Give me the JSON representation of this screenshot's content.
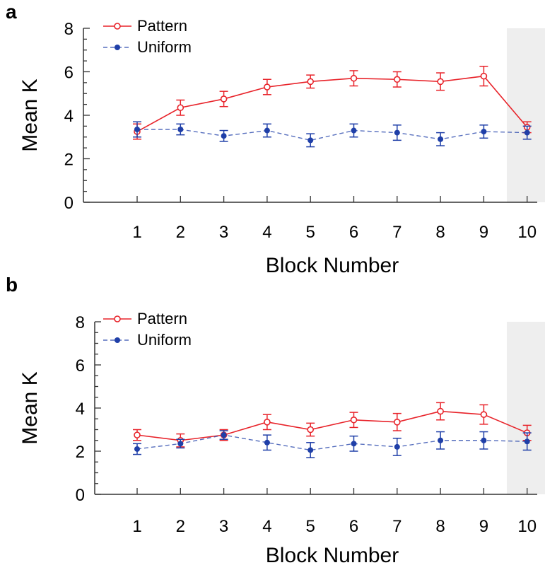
{
  "chart_data": [
    {
      "type": "line",
      "panel_label": "a",
      "xlabel": "Block Number",
      "ylabel": "Mean K",
      "x": [
        1,
        2,
        3,
        4,
        5,
        6,
        7,
        8,
        9,
        10
      ],
      "ylim": [
        0,
        8
      ],
      "yticks": [
        0,
        2,
        4,
        6,
        8
      ],
      "shaded_block": 10,
      "shade_color": "#eeeeee",
      "legend_position": "top-left",
      "series": [
        {
          "name": "Pattern",
          "color": "#e8232a",
          "marker": "open-circle",
          "line": "solid",
          "values": [
            3.25,
            4.35,
            4.75,
            5.3,
            5.55,
            5.7,
            5.65,
            5.55,
            5.8,
            3.45
          ],
          "errors": [
            0.35,
            0.35,
            0.35,
            0.35,
            0.3,
            0.35,
            0.35,
            0.4,
            0.45,
            0.25
          ]
        },
        {
          "name": "Uniform",
          "color": "#1f3fa8",
          "marker": "filled-circle",
          "line": "dashed",
          "values": [
            3.35,
            3.35,
            3.05,
            3.3,
            2.85,
            3.3,
            3.2,
            2.9,
            3.25,
            3.2
          ],
          "errors": [
            0.35,
            0.25,
            0.25,
            0.3,
            0.3,
            0.3,
            0.35,
            0.3,
            0.3,
            0.3
          ]
        }
      ]
    },
    {
      "type": "line",
      "panel_label": "b",
      "xlabel": "Block Number",
      "ylabel": "Mean K",
      "x": [
        1,
        2,
        3,
        4,
        5,
        6,
        7,
        8,
        9,
        10
      ],
      "ylim": [
        0,
        8
      ],
      "yticks": [
        0,
        2,
        4,
        6,
        8
      ],
      "shaded_block": 10,
      "shade_color": "#eeeeee",
      "legend_position": "top-left",
      "series": [
        {
          "name": "Pattern",
          "color": "#e8232a",
          "marker": "open-circle",
          "line": "solid",
          "values": [
            2.75,
            2.5,
            2.75,
            3.35,
            3.0,
            3.45,
            3.35,
            3.85,
            3.7,
            2.85
          ],
          "errors": [
            0.25,
            0.3,
            0.25,
            0.35,
            0.3,
            0.35,
            0.4,
            0.4,
            0.45,
            0.35
          ]
        },
        {
          "name": "Uniform",
          "color": "#1f3fa8",
          "marker": "filled-circle",
          "line": "dashed",
          "values": [
            2.1,
            2.35,
            2.75,
            2.4,
            2.05,
            2.35,
            2.2,
            2.5,
            2.5,
            2.45
          ],
          "errors": [
            0.25,
            0.2,
            0.2,
            0.35,
            0.35,
            0.35,
            0.4,
            0.4,
            0.4,
            0.4
          ]
        }
      ]
    }
  ]
}
